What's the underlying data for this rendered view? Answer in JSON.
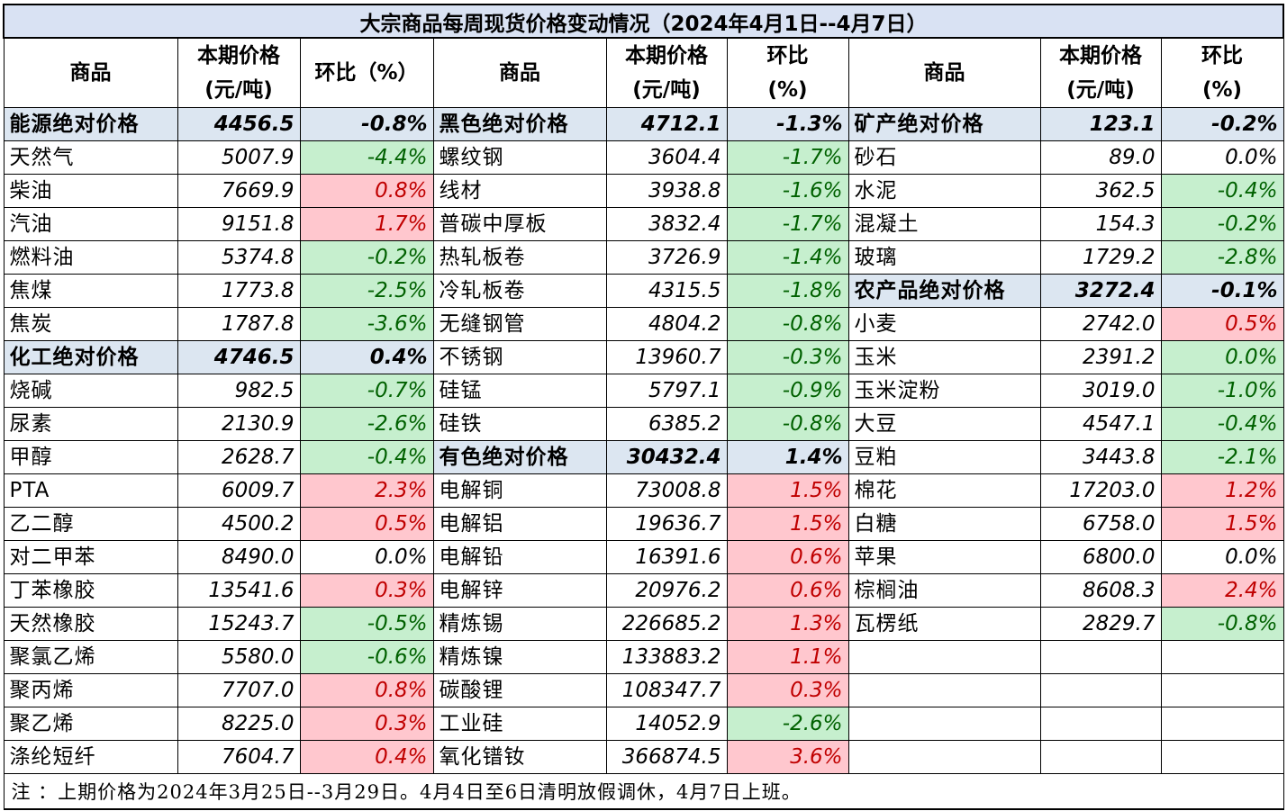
{
  "title": "大宗商品每周现货价格变动情况（2024年4月1日--4月7日）",
  "headers": [
    "商品",
    "本期价格\n(元/吨)",
    "环比（%）",
    "商品",
    "本期价格\n(元/吨)",
    "环比\n(%)",
    "商品",
    "本期价格\n(元/吨)",
    "环比\n(%)"
  ],
  "rows": [
    [
      [
        "能源绝对价格",
        "4456.5",
        "-0.8%",
        "g"
      ],
      [
        "黑色绝对价格",
        "4712.1",
        "-1.3%",
        "g"
      ],
      [
        "矿产绝对价格",
        "123.1",
        "-0.2%",
        "g"
      ]
    ],
    [
      [
        "天然气",
        "5007.9",
        "-4.4%",
        "n"
      ],
      [
        "螺纹钢",
        "3604.4",
        "-1.7%",
        "n"
      ],
      [
        "砂石",
        "89.0",
        "0.0%",
        "z"
      ]
    ],
    [
      [
        "柴油",
        "7669.9",
        "0.8%",
        "p"
      ],
      [
        "线材",
        "3938.8",
        "-1.6%",
        "n"
      ],
      [
        "水泥",
        "362.5",
        "-0.4%",
        "n"
      ]
    ],
    [
      [
        "汽油",
        "9151.8",
        "1.7%",
        "p"
      ],
      [
        "普碳中厚板",
        "3832.4",
        "-1.7%",
        "n"
      ],
      [
        "混凝土",
        "154.3",
        "-0.2%",
        "n"
      ]
    ],
    [
      [
        "燃料油",
        "5374.8",
        "-0.2%",
        "n"
      ],
      [
        "热轧板卷",
        "3726.9",
        "-1.4%",
        "n"
      ],
      [
        "玻璃",
        "1729.2",
        "-2.8%",
        "n"
      ]
    ],
    [
      [
        "焦煤",
        "1773.8",
        "-2.5%",
        "n"
      ],
      [
        "冷轧板卷",
        "4315.5",
        "-1.8%",
        "n"
      ],
      [
        "农产品绝对价格",
        "3272.4",
        "-0.1%",
        "g"
      ]
    ],
    [
      [
        "焦炭",
        "1787.8",
        "-3.6%",
        "n"
      ],
      [
        "无缝钢管",
        "4804.2",
        "-0.8%",
        "n"
      ],
      [
        "小麦",
        "2742.0",
        "0.5%",
        "p"
      ]
    ],
    [
      [
        "化工绝对价格",
        "4746.5",
        "0.4%",
        "g"
      ],
      [
        "不锈钢",
        "13960.7",
        "-0.3%",
        "n"
      ],
      [
        "玉米",
        "2391.2",
        "0.0%",
        "zg"
      ]
    ],
    [
      [
        "烧碱",
        "982.5",
        "-0.7%",
        "n"
      ],
      [
        "硅锰",
        "5797.1",
        "-0.9%",
        "n"
      ],
      [
        "玉米淀粉",
        "3019.0",
        "-1.0%",
        "n"
      ]
    ],
    [
      [
        "尿素",
        "2130.9",
        "-2.6%",
        "n"
      ],
      [
        "硅铁",
        "6385.2",
        "-0.8%",
        "n"
      ],
      [
        "大豆",
        "4547.1",
        "-0.4%",
        "n"
      ]
    ],
    [
      [
        "甲醇",
        "2628.7",
        "-0.4%",
        "n"
      ],
      [
        "有色绝对价格",
        "30432.4",
        "1.4%",
        "g"
      ],
      [
        "豆粕",
        "3443.8",
        "-2.1%",
        "n"
      ]
    ],
    [
      [
        "PTA",
        "6009.7",
        "2.3%",
        "p"
      ],
      [
        "电解铜",
        "73008.8",
        "1.5%",
        "p"
      ],
      [
        "棉花",
        "17203.0",
        "1.2%",
        "p"
      ]
    ],
    [
      [
        "乙二醇",
        "4500.2",
        "0.5%",
        "p"
      ],
      [
        "电解铝",
        "19636.7",
        "1.5%",
        "p"
      ],
      [
        "白糖",
        "6758.0",
        "1.5%",
        "p"
      ]
    ],
    [
      [
        "对二甲苯",
        "8490.0",
        "0.0%",
        "z"
      ],
      [
        "电解铅",
        "16391.6",
        "0.6%",
        "p"
      ],
      [
        "苹果",
        "6800.0",
        "0.0%",
        "z"
      ]
    ],
    [
      [
        "丁苯橡胶",
        "13541.6",
        "0.3%",
        "p"
      ],
      [
        "电解锌",
        "20976.2",
        "0.6%",
        "p"
      ],
      [
        "棕榈油",
        "8608.3",
        "2.4%",
        "p"
      ]
    ],
    [
      [
        "天然橡胶",
        "15243.7",
        "-0.5%",
        "n"
      ],
      [
        "精炼锡",
        "226685.2",
        "1.3%",
        "p"
      ],
      [
        "瓦楞纸",
        "2829.7",
        "-0.8%",
        "n"
      ]
    ],
    [
      [
        "聚氯乙烯",
        "5580.0",
        "-0.6%",
        "n"
      ],
      [
        "精炼镍",
        "133883.2",
        "1.1%",
        "p"
      ],
      [
        "",
        "",
        "",
        "e"
      ]
    ],
    [
      [
        "聚丙烯",
        "7707.0",
        "0.8%",
        "p"
      ],
      [
        "碳酸锂",
        "108347.7",
        "0.3%",
        "p"
      ],
      [
        "",
        "",
        "",
        "e"
      ]
    ],
    [
      [
        "聚乙烯",
        "8225.0",
        "0.3%",
        "p"
      ],
      [
        "工业硅",
        "14052.9",
        "-2.6%",
        "n"
      ],
      [
        "",
        "",
        "",
        "e"
      ]
    ],
    [
      [
        "涤纶短纤",
        "7604.7",
        "0.4%",
        "p"
      ],
      [
        "氧化镨钕",
        "366874.5",
        "3.6%",
        "p"
      ],
      [
        "",
        "",
        "",
        "e"
      ]
    ]
  ],
  "note": "注 ：上期价格为2024年3月25日--3月29日。4月4日至6日清明放假调休，4月7日上班。",
  "colors": {
    "title_bg": "#d9e2f3",
    "group_bg": "#dce6f1",
    "down_bg": "#c6efce",
    "down_text": "#006100",
    "up_bg": "#ffc7ce",
    "up_text": "#c00000"
  }
}
